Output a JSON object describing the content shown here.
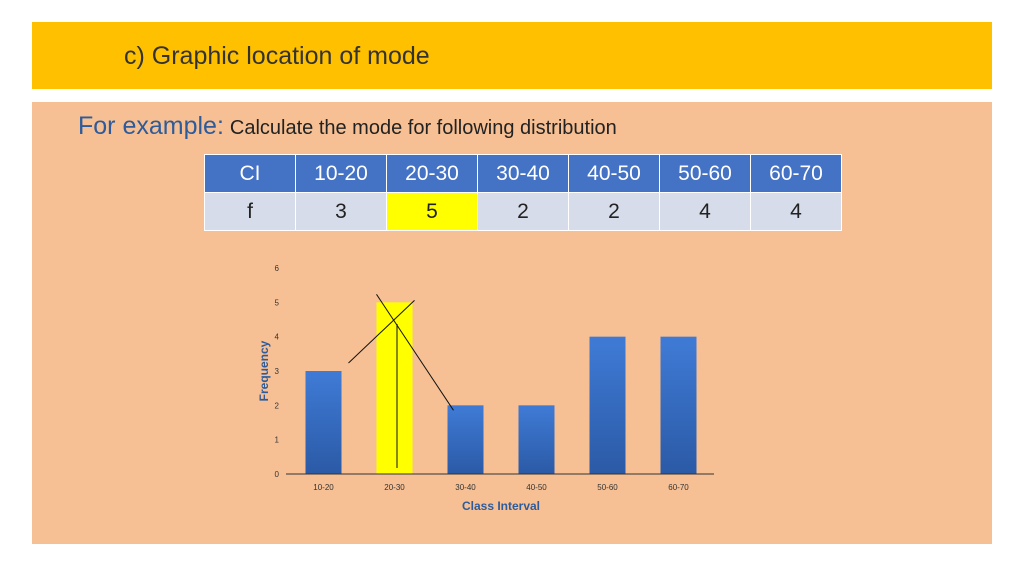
{
  "slide": {
    "title": "c) Graphic location of mode",
    "example_lead": "For example:",
    "example_text": "Calculate the mode for following distribution"
  },
  "table": {
    "header_label": "CI",
    "row_label": "f",
    "columns": [
      "10-20",
      "20-30",
      "30-40",
      "40-50",
      "50-60",
      "60-70"
    ],
    "frequencies": [
      "3",
      "5",
      "2",
      "2",
      "4",
      "4"
    ],
    "highlight_index": 1
  },
  "colors": {
    "title_bar": "#FFC000",
    "background": "#F6C094",
    "bar": "#3A6FC4",
    "modal_bar": "#FFFF00",
    "table_header": "#4472C4",
    "table_cell": "#D6DCE9",
    "axis_label": "#2E5B9A"
  },
  "chart_data": {
    "type": "bar",
    "categories": [
      "10-20",
      "20-30",
      "30-40",
      "40-50",
      "50-60",
      "60-70"
    ],
    "values": [
      3,
      5,
      2,
      2,
      4,
      4
    ],
    "highlight_index": 1,
    "xlabel": "Class Interval",
    "ylabel": "Frequency",
    "ylim": [
      0,
      6
    ],
    "yticks": [
      "0",
      "1",
      "2",
      "3",
      "4",
      "5",
      "6"
    ],
    "grid": false,
    "annotations": "Two crossing lines join the modal bar's top corners to the adjacent bars' tops; a vertical line drops from the intersection to the x-axis."
  }
}
